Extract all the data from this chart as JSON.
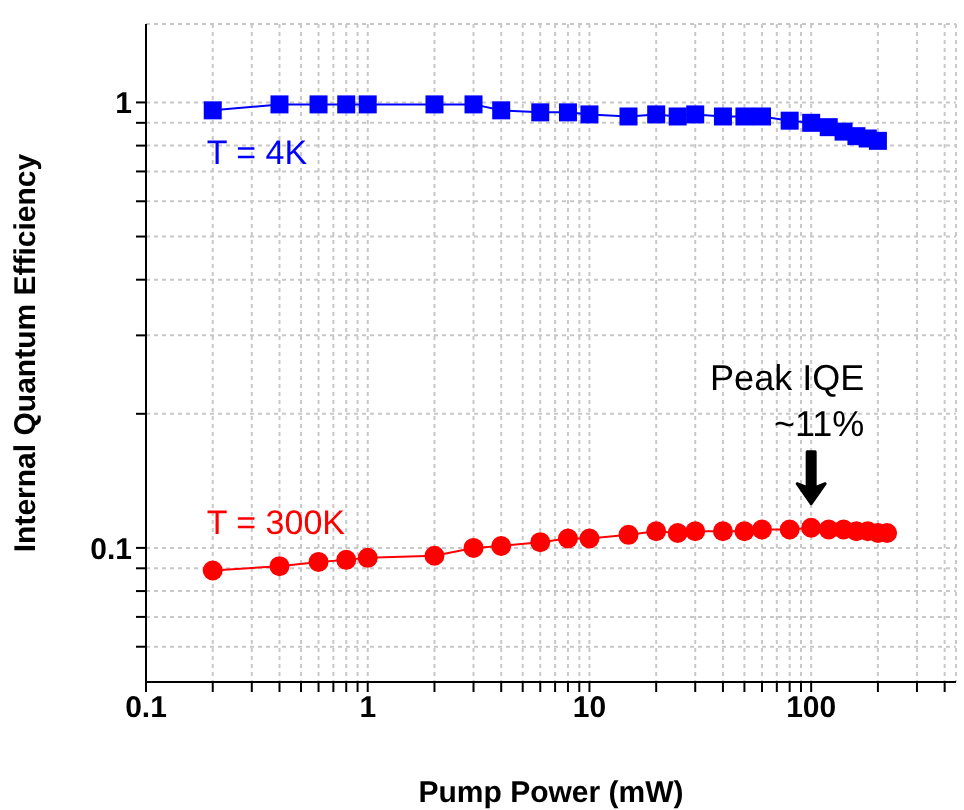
{
  "chart_data": {
    "type": "line",
    "xlabel": "Pump Power (mW)",
    "ylabel": "Internal Quantum Efficiency",
    "log": "xy",
    "grid": true,
    "legend": false,
    "line_style": "solid",
    "xlim": [
      0.1,
      450
    ],
    "ylim": [
      0.05,
      1.5
    ],
    "xticks": [
      0.1,
      {
        "value": 0.2,
        "label": null
      },
      {
        "value": 0.3,
        "label": null
      },
      {
        "value": 0.4,
        "label": null
      },
      {
        "value": 0.5,
        "label": null
      },
      {
        "value": 0.6,
        "label": null
      },
      {
        "value": 0.7,
        "label": null
      },
      {
        "value": 0.8,
        "label": null
      },
      {
        "value": 0.9,
        "label": null
      },
      1,
      {
        "value": 2,
        "label": null
      },
      {
        "value": 3,
        "label": null
      },
      {
        "value": 4,
        "label": null
      },
      {
        "value": 5,
        "label": null
      },
      {
        "value": 6,
        "label": null
      },
      {
        "value": 7,
        "label": null
      },
      {
        "value": 8,
        "label": null
      },
      {
        "value": 9,
        "label": null
      },
      10,
      {
        "value": 20,
        "label": null
      },
      {
        "value": 30,
        "label": null
      },
      {
        "value": 40,
        "label": null
      },
      {
        "value": 50,
        "label": null
      },
      {
        "value": 60,
        "label": null
      },
      {
        "value": 70,
        "label": null
      },
      {
        "value": 80,
        "label": null
      },
      {
        "value": 90,
        "label": null
      },
      100,
      {
        "value": 200,
        "label": null
      },
      {
        "value": 300,
        "label": null
      },
      {
        "value": 400,
        "label": null
      }
    ],
    "yticks": [
      {
        "value": 0.06,
        "label": null
      },
      {
        "value": 0.07,
        "label": null
      },
      {
        "value": 0.08,
        "label": null
      },
      {
        "value": 0.09,
        "label": null
      },
      0.1,
      {
        "value": 0.2,
        "label": null
      },
      {
        "value": 0.3,
        "label": null
      },
      {
        "value": 0.4,
        "label": null
      },
      {
        "value": 0.5,
        "label": null
      },
      {
        "value": 0.6,
        "label": null
      },
      {
        "value": 0.7,
        "label": null
      },
      {
        "value": 0.8,
        "label": null
      },
      {
        "value": 0.9,
        "label": null
      },
      1
    ],
    "series": [
      {
        "name": "T = 4K",
        "color": "#0000ff",
        "marker": "square",
        "x": [
          0.2,
          0.4,
          0.6,
          0.8,
          1,
          2,
          3,
          4,
          6,
          8,
          10,
          15,
          20,
          25,
          30,
          40,
          50,
          60,
          80,
          100,
          120,
          140,
          160,
          180,
          200
        ],
        "values": [
          0.96,
          0.99,
          0.99,
          0.99,
          0.99,
          0.99,
          0.99,
          0.96,
          0.95,
          0.95,
          0.94,
          0.93,
          0.94,
          0.93,
          0.94,
          0.93,
          0.93,
          0.93,
          0.91,
          0.9,
          0.88,
          0.86,
          0.84,
          0.83,
          0.82
        ]
      },
      {
        "name": "T = 300K",
        "color": "#ff0000",
        "marker": "circle",
        "x": [
          0.2,
          0.4,
          0.6,
          0.8,
          1,
          2,
          3,
          4,
          6,
          8,
          10,
          15,
          20,
          25,
          30,
          40,
          50,
          60,
          80,
          100,
          120,
          140,
          160,
          180,
          200,
          220
        ],
        "values": [
          0.089,
          0.091,
          0.093,
          0.094,
          0.095,
          0.096,
          0.1,
          0.101,
          0.103,
          0.105,
          0.105,
          0.107,
          0.109,
          0.108,
          0.109,
          0.109,
          0.109,
          0.11,
          0.11,
          0.111,
          0.11,
          0.11,
          0.109,
          0.109,
          0.108,
          0.108
        ]
      }
    ],
    "annotations": [
      {
        "text": "Peak IQE\n~11%",
        "x": 100,
        "y": 0.111
      }
    ]
  }
}
